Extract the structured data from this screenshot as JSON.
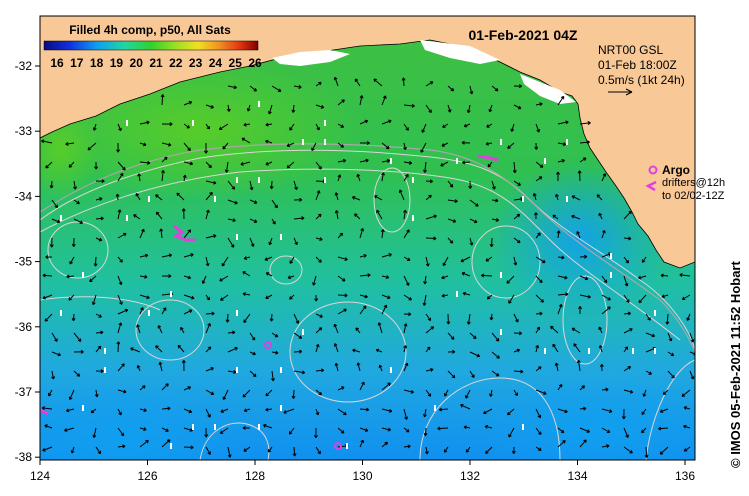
{
  "header": {
    "title": "01-Feb-2021 04Z",
    "colorbar_title": "Filled 4h comp, p50, All Sats",
    "colorbar_ticks": [
      "16",
      "17",
      "18",
      "19",
      "20",
      "21",
      "22",
      "23",
      "24",
      "25",
      "26"
    ]
  },
  "legend": {
    "line1": "NRT00 GSL",
    "line2": "01-Feb 18:00Z",
    "line3": "0.5m/s (1kt 24h)",
    "argo_label": "Argo",
    "drifters_line1": "drifters@12h",
    "drifters_line2": "to 02/02-12Z"
  },
  "axes": {
    "x_ticks": [
      "124",
      "126",
      "128",
      "130",
      "132",
      "134",
      "136"
    ],
    "y_ticks": [
      "-32",
      "-33",
      "-34",
      "-35",
      "-36",
      "-37",
      "-38"
    ]
  },
  "credit": "© IMOS 05-Feb-2021 11:52 Hobart",
  "colors": {
    "land": "#f9c897",
    "argo": "#e040e0",
    "contour": "#d8d8d8"
  }
}
